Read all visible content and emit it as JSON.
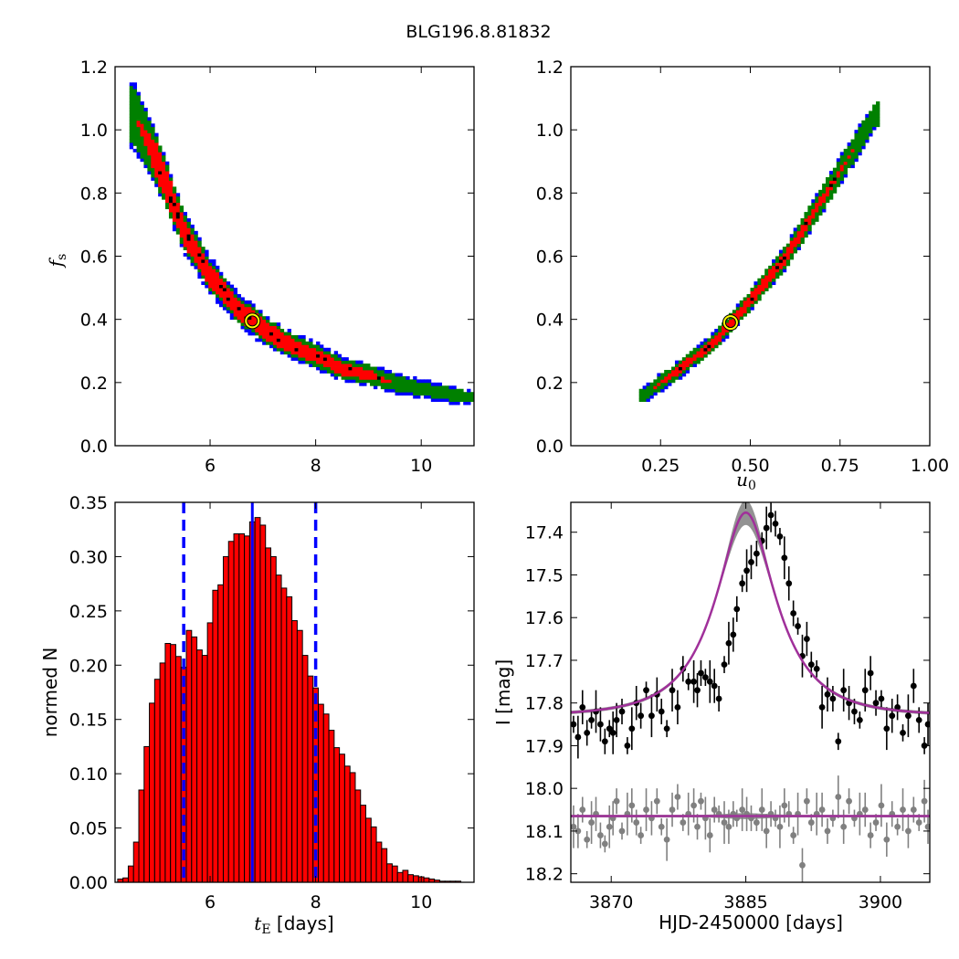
{
  "title": "BLG196.8.81832",
  "colors": {
    "contour_outer": "#0000ff",
    "contour_mid": "#008000",
    "contour_inner": "#ff0000",
    "contour_core": "#000000",
    "best_fit_marker": "#ffff00",
    "histogram_bar": "#ff0000",
    "median_line": "#0000ff",
    "model_curve": "#a0309a",
    "band_gray": "#7f7f7f",
    "data_black": "#000000",
    "data_gray": "#808080"
  },
  "chart_data": [
    {
      "id": "tE-fs",
      "type": "heatmap",
      "ylabel_main": "f",
      "ylabel_sub": "s",
      "xlim": [
        4.2,
        11.0
      ],
      "ylim": [
        0.0,
        1.2
      ],
      "xticks": [
        6,
        8,
        10
      ],
      "yticks": [
        0.0,
        0.2,
        0.4,
        0.6,
        0.8,
        1.0,
        1.2
      ],
      "xtick_labels": [
        "6",
        "8",
        "10"
      ],
      "ytick_labels": [
        "0.0",
        "0.2",
        "0.4",
        "0.6",
        "0.8",
        "1.0",
        "1.2"
      ],
      "best_fit": [
        6.8,
        0.395
      ],
      "ridge": [
        [
          4.55,
          1.05
        ],
        [
          5.0,
          0.9
        ],
        [
          5.5,
          0.68
        ],
        [
          6.0,
          0.54
        ],
        [
          6.5,
          0.44
        ],
        [
          7.0,
          0.37
        ],
        [
          7.5,
          0.32
        ],
        [
          8.0,
          0.285
        ],
        [
          8.5,
          0.245
        ],
        [
          9.0,
          0.225
        ],
        [
          9.5,
          0.2
        ],
        [
          10.0,
          0.18
        ],
        [
          10.5,
          0.165
        ],
        [
          10.9,
          0.155
        ]
      ],
      "levels": [
        {
          "name": "outer",
          "width": [
            0.11,
            0.085,
            0.07,
            0.06,
            0.055,
            0.05,
            0.045,
            0.045,
            0.04,
            0.035,
            0.035,
            0.03,
            0.03,
            0.02
          ]
        },
        {
          "name": "mid",
          "width": [
            0.09,
            0.075,
            0.055,
            0.045,
            0.04,
            0.04,
            0.035,
            0.035,
            0.03,
            0.03,
            0.025,
            0.02,
            0.02,
            0.015
          ]
        },
        {
          "name": "inner",
          "width": [
            0.0,
            0.055,
            0.04,
            0.035,
            0.03,
            0.03,
            0.025,
            0.02,
            0.02,
            0.015,
            0.0,
            0.0,
            0.0,
            0.0
          ]
        }
      ]
    },
    {
      "id": "u0-fs",
      "type": "heatmap",
      "xlabel_main": "u",
      "xlabel_sub": "0",
      "xlim": [
        0.0,
        1.0
      ],
      "ylim": [
        0.0,
        1.2
      ],
      "xticks": [
        0.25,
        0.5,
        0.75,
        1.0
      ],
      "yticks": [
        0.0,
        0.2,
        0.4,
        0.6,
        0.8,
        1.0,
        1.2
      ],
      "xtick_labels": [
        "0.25",
        "0.50",
        "0.75",
        "1.00"
      ],
      "ytick_labels": [
        "0.0",
        "0.2",
        "0.4",
        "0.6",
        "0.8",
        "1.0",
        "1.2"
      ],
      "best_fit": [
        0.445,
        0.39
      ],
      "ridge": [
        [
          0.2,
          0.16
        ],
        [
          0.3,
          0.24
        ],
        [
          0.4,
          0.33
        ],
        [
          0.5,
          0.46
        ],
        [
          0.6,
          0.6
        ],
        [
          0.7,
          0.78
        ],
        [
          0.8,
          0.96
        ],
        [
          0.85,
          1.05
        ]
      ],
      "levels": [
        {
          "name": "outer",
          "width": [
            0.03,
            0.03,
            0.03,
            0.035,
            0.04,
            0.045,
            0.05,
            0.04
          ]
        },
        {
          "name": "mid",
          "width": [
            0.02,
            0.025,
            0.025,
            0.03,
            0.035,
            0.04,
            0.04,
            0.035
          ]
        },
        {
          "name": "inner",
          "width": [
            0.0,
            0.012,
            0.015,
            0.018,
            0.02,
            0.015,
            0.0,
            0.0
          ]
        }
      ]
    },
    {
      "id": "tE-hist",
      "type": "bar",
      "xlabel_main": "t",
      "xlabel_sub": "E",
      "xlabel_suffix": " [days]",
      "ylabel": "normed N",
      "xlim": [
        4.2,
        11.0
      ],
      "ylim": [
        0.0,
        0.35
      ],
      "xticks": [
        6,
        8,
        10
      ],
      "yticks": [
        0.0,
        0.05,
        0.1,
        0.15,
        0.2,
        0.25,
        0.3,
        0.35
      ],
      "xtick_labels": [
        "6",
        "8",
        "10"
      ],
      "ytick_labels": [
        "0.00",
        "0.05",
        "0.10",
        "0.15",
        "0.20",
        "0.25",
        "0.30",
        "0.35"
      ],
      "bin_start": 4.25,
      "bin_width": 0.1,
      "values": [
        0.003,
        0.004,
        0.015,
        0.037,
        0.085,
        0.125,
        0.165,
        0.187,
        0.202,
        0.22,
        0.219,
        0.208,
        0.198,
        0.232,
        0.226,
        0.214,
        0.209,
        0.239,
        0.269,
        0.274,
        0.3,
        0.314,
        0.321,
        0.321,
        0.319,
        0.332,
        0.336,
        0.329,
        0.308,
        0.3,
        0.283,
        0.271,
        0.263,
        0.241,
        0.232,
        0.209,
        0.19,
        0.179,
        0.164,
        0.155,
        0.14,
        0.124,
        0.118,
        0.107,
        0.101,
        0.085,
        0.071,
        0.059,
        0.051,
        0.037,
        0.031,
        0.017,
        0.015,
        0.009,
        0.011,
        0.007,
        0.006,
        0.005,
        0.004,
        0.003,
        0.002,
        0.001,
        0.001,
        0.001,
        0.001
      ],
      "median": 6.8,
      "lower": 5.5,
      "upper": 8.0
    },
    {
      "id": "lightcurve",
      "type": "scatter",
      "xlabel": "HJD-2450000 [days]",
      "ylabel": "I [mag]",
      "xlim": [
        3865.5,
        3905.5
      ],
      "ylim": [
        18.22,
        17.33
      ],
      "xticks": [
        3870,
        3885,
        3900
      ],
      "yticks": [
        17.4,
        17.5,
        17.6,
        17.7,
        17.8,
        17.9,
        18.0,
        18.1,
        18.2
      ],
      "xtick_labels": [
        "3870",
        "3885",
        "3900"
      ],
      "ytick_labels": [
        "17.4",
        "17.5",
        "17.6",
        "17.7",
        "17.8",
        "17.9",
        "18.0",
        "18.1",
        "18.2"
      ],
      "model": {
        "t0": 3885.0,
        "tE": 6.8,
        "u0": 0.445,
        "base_mag": 17.83,
        "fs": 0.39
      },
      "model_baseline_gray": 18.065,
      "series": [
        {
          "x": [
            3865.8,
            3866.3,
            3866.8,
            3867.3,
            3867.8,
            3868.3,
            3868.8,
            3869.3,
            3869.8,
            3870.2,
            3870.6,
            3871.2,
            3871.8,
            3872.3,
            3872.8,
            3873.3,
            3873.9,
            3874.5,
            3875.1,
            3875.6,
            3876.2,
            3876.8,
            3877.4,
            3878.0,
            3878.6,
            3879.2,
            3879.6,
            3880.0,
            3880.5,
            3881.0,
            3881.5,
            3882.0,
            3882.6,
            3883.1,
            3883.6,
            3884.0,
            3884.6,
            3885.1,
            3885.6,
            3886.2,
            3886.8,
            3887.3,
            3887.8,
            3888.3,
            3888.8,
            3889.3,
            3889.8,
            3890.3,
            3890.8,
            3891.3,
            3891.8,
            3892.3,
            3892.9,
            3893.5,
            3894.1,
            3894.7,
            3895.3,
            3895.9,
            3896.5,
            3897.1,
            3897.7,
            3898.3,
            3898.9,
            3899.5,
            3900.1,
            3900.7,
            3901.3,
            3901.9,
            3902.5,
            3903.1,
            3903.7,
            3904.3,
            3904.9,
            3905.3
          ],
          "y": [
            17.85,
            17.88,
            17.81,
            17.87,
            17.84,
            17.82,
            17.85,
            17.89,
            17.86,
            17.87,
            17.84,
            17.82,
            17.9,
            17.86,
            17.8,
            17.83,
            17.77,
            17.83,
            17.78,
            17.82,
            17.86,
            17.77,
            17.81,
            17.72,
            17.75,
            17.75,
            17.77,
            17.73,
            17.74,
            17.75,
            17.76,
            17.79,
            17.71,
            17.66,
            17.64,
            17.58,
            17.52,
            17.49,
            17.47,
            17.45,
            17.42,
            17.39,
            17.36,
            17.38,
            17.41,
            17.46,
            17.52,
            17.59,
            17.62,
            17.69,
            17.65,
            17.71,
            17.72,
            17.81,
            17.78,
            17.79,
            17.89,
            17.77,
            17.8,
            17.82,
            17.84,
            17.77,
            17.73,
            17.8,
            17.79,
            17.86,
            17.83,
            17.81,
            17.87,
            17.83,
            17.76,
            17.84,
            17.9,
            17.85
          ]
        },
        {
          "x": [
            3865.8,
            3866.3,
            3866.8,
            3867.3,
            3867.8,
            3868.3,
            3868.8,
            3869.3,
            3869.8,
            3870.2,
            3870.6,
            3871.2,
            3871.8,
            3872.3,
            3872.8,
            3873.3,
            3873.9,
            3874.5,
            3875.1,
            3875.6,
            3876.2,
            3876.8,
            3877.4,
            3878.0,
            3878.6,
            3879.2,
            3879.6,
            3880.0,
            3880.5,
            3881.0,
            3881.5,
            3882.0,
            3882.6,
            3883.1,
            3883.6,
            3884.0,
            3884.6,
            3885.1,
            3885.6,
            3886.2,
            3886.8,
            3887.3,
            3887.8,
            3888.3,
            3888.8,
            3889.3,
            3889.8,
            3890.3,
            3890.8,
            3891.3,
            3891.8,
            3892.3,
            3892.9,
            3893.5,
            3894.1,
            3894.7,
            3895.3,
            3895.9,
            3896.5,
            3897.1,
            3897.7,
            3898.3,
            3898.9,
            3899.5,
            3900.1,
            3900.7,
            3901.3,
            3901.9,
            3902.5,
            3903.1,
            3903.7,
            3904.3,
            3904.9,
            3905.3
          ],
          "y": [
            18.09,
            18.1,
            18.05,
            18.12,
            18.08,
            18.06,
            18.11,
            18.13,
            18.09,
            18.07,
            18.03,
            18.1,
            18.06,
            18.04,
            18.08,
            18.11,
            18.05,
            18.07,
            18.03,
            18.09,
            18.12,
            18.05,
            18.02,
            18.08,
            18.06,
            18.04,
            18.09,
            18.03,
            18.07,
            18.11,
            18.05,
            18.06,
            18.08,
            18.09,
            18.06,
            18.07,
            18.05,
            18.06,
            18.07,
            18.08,
            18.05,
            18.1,
            18.06,
            18.07,
            18.09,
            18.04,
            18.06,
            18.11,
            18.06,
            18.18,
            18.03,
            18.08,
            18.06,
            18.05,
            18.1,
            18.07,
            18.02,
            18.09,
            18.03,
            18.07,
            18.06,
            18.05,
            18.11,
            18.08,
            18.04,
            18.12,
            18.06,
            18.09,
            18.05,
            18.1,
            18.05,
            18.08,
            18.03,
            18.09
          ]
        }
      ]
    }
  ]
}
